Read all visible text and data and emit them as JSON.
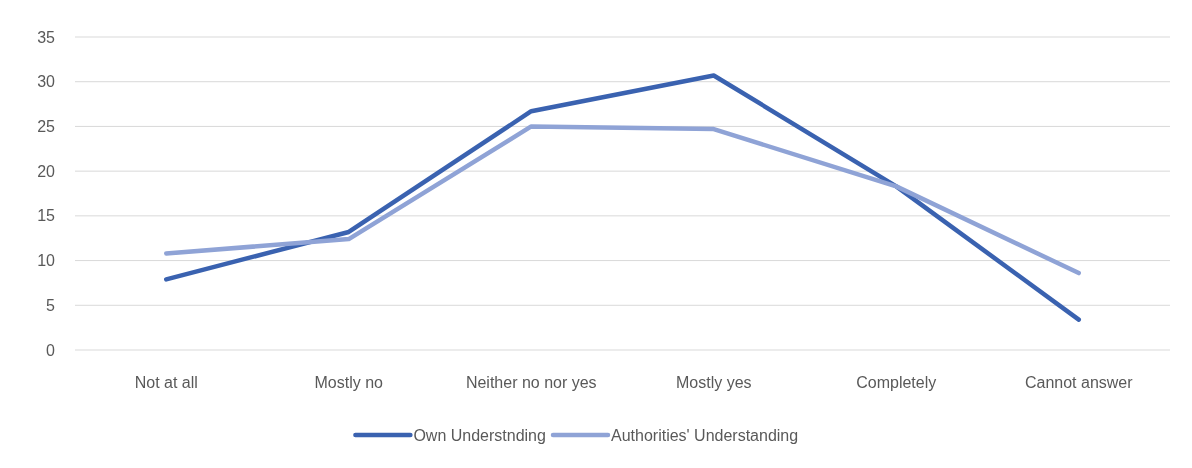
{
  "chart_data": {
    "type": "line",
    "categories": [
      "Not at all",
      "Mostly no",
      "Neither no nor yes",
      "Mostly yes",
      "Completely",
      "Cannot answer"
    ],
    "series": [
      {
        "name": "Own Understnding",
        "color": "#3a62b0",
        "values": [
          7.9,
          13.2,
          26.7,
          30.7,
          18.3,
          3.4
        ]
      },
      {
        "name": "Authorities' Understanding",
        "color": "#8fa3d6",
        "values": [
          10.8,
          12.4,
          25.0,
          24.7,
          18.3,
          8.6
        ]
      }
    ],
    "ylim": [
      0,
      35
    ],
    "yticks": [
      0,
      5,
      10,
      15,
      20,
      25,
      30,
      35
    ],
    "grid": "y",
    "legend": "bottom",
    "marker": "none",
    "line_style": "solid"
  }
}
